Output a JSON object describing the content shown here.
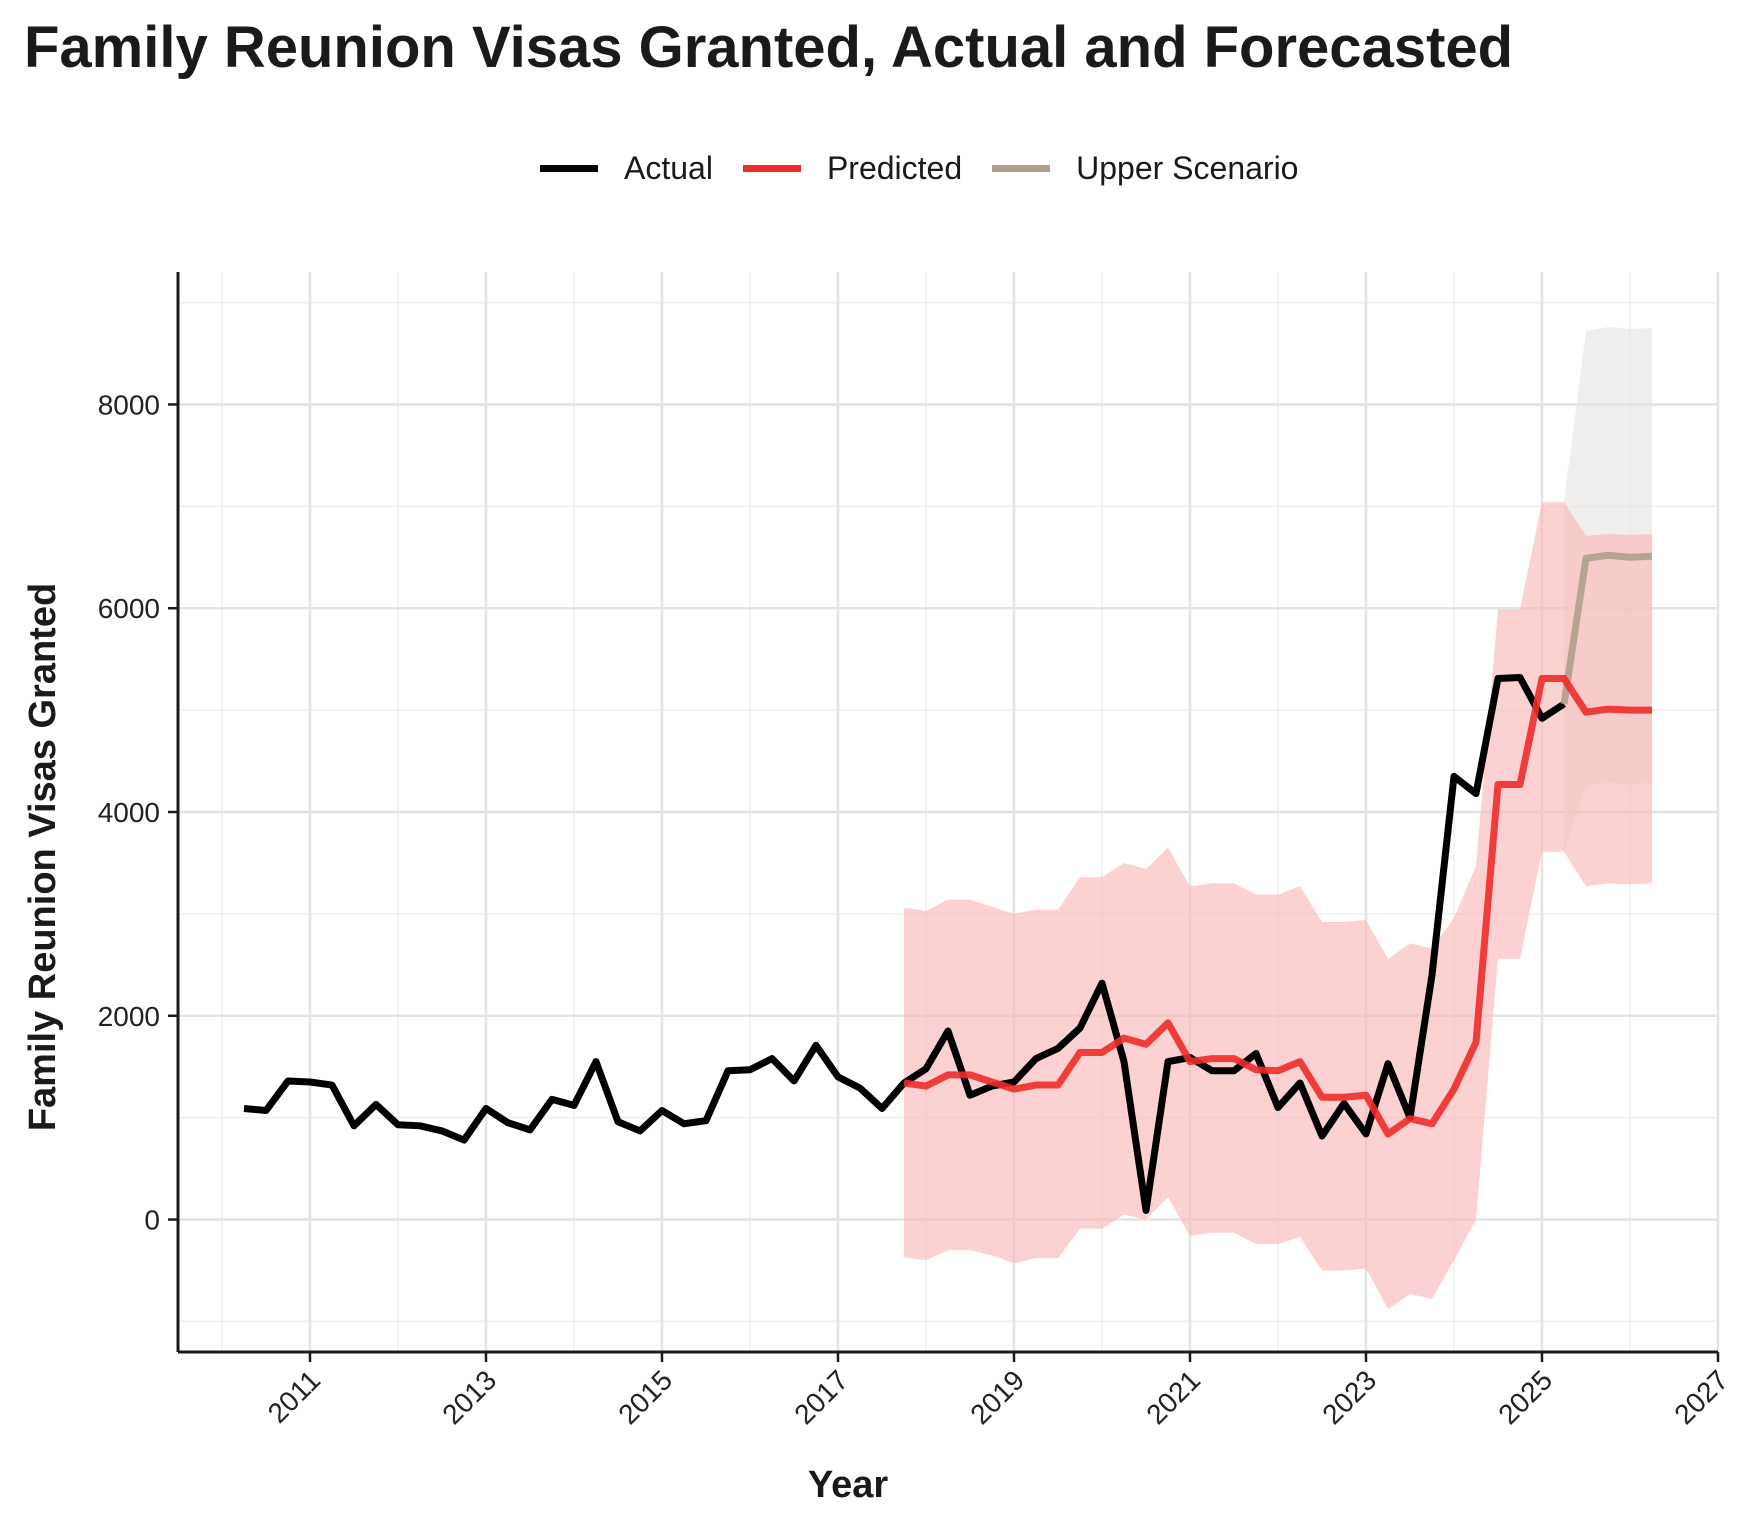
{
  "chart_data": {
    "type": "line",
    "title": "Family Reunion Visas Granted, Actual and Forecasted",
    "xlabel": "Year",
    "ylabel": "Family Reunion Visas Granted",
    "xlim": [
      2009.5,
      2027
    ],
    "ylim": [
      -1300,
      9300
    ],
    "x_ticks": [
      2011,
      2013,
      2015,
      2017,
      2019,
      2021,
      2023,
      2025,
      2027
    ],
    "y_ticks": [
      0,
      2000,
      4000,
      6000,
      8000
    ],
    "grid": true,
    "legend_position": "top",
    "colors": {
      "actual": "#000000",
      "predicted": "#ee2b29",
      "upper": "#aea08c",
      "band_predicted": "#f9b9b9",
      "band_upper": "#e6e3df"
    },
    "series": [
      {
        "name": "Actual",
        "x": [
          2010.25,
          2010.5,
          2010.75,
          2011,
          2011.25,
          2011.5,
          2011.75,
          2012,
          2012.25,
          2012.5,
          2012.75,
          2013,
          2013.25,
          2013.5,
          2013.75,
          2014,
          2014.25,
          2014.5,
          2014.75,
          2015,
          2015.25,
          2015.5,
          2015.75,
          2016,
          2016.25,
          2016.5,
          2016.75,
          2017,
          2017.25,
          2017.5,
          2017.75,
          2018,
          2018.25,
          2018.5,
          2018.75,
          2019,
          2019.25,
          2019.5,
          2019.75,
          2020,
          2020.25,
          2020.5,
          2020.75,
          2021,
          2021.25,
          2021.5,
          2021.75,
          2022,
          2022.25,
          2022.5,
          2022.75,
          2023,
          2023.25,
          2023.5,
          2023.75,
          2024,
          2024.25,
          2024.5,
          2024.75,
          2025,
          2025.25
        ],
        "values": [
          1090,
          1070,
          1360,
          1350,
          1320,
          920,
          1130,
          930,
          920,
          870,
          780,
          1090,
          950,
          880,
          1180,
          1120,
          1550,
          960,
          870,
          1070,
          940,
          970,
          1460,
          1470,
          1580,
          1360,
          1710,
          1400,
          1290,
          1090,
          1340,
          1480,
          1850,
          1220,
          1310,
          1350,
          1580,
          1680,
          1880,
          2320,
          1550,
          90,
          1550,
          1590,
          1460,
          1460,
          1630,
          1100,
          1340,
          820,
          1140,
          840,
          1530,
          1000,
          2400,
          4350,
          4180,
          5310,
          5320,
          4920,
          5060
        ]
      },
      {
        "name": "Predicted",
        "x": [
          2017.75,
          2018,
          2018.25,
          2018.5,
          2018.75,
          2019,
          2019.25,
          2019.5,
          2019.75,
          2020,
          2020.25,
          2020.5,
          2020.75,
          2021,
          2021.25,
          2021.5,
          2021.75,
          2022,
          2022.25,
          2022.5,
          2022.75,
          2023,
          2023.25,
          2023.5,
          2023.75,
          2024,
          2024.25,
          2024.5,
          2024.75,
          2025,
          2025.25,
          2025.5,
          2025.75,
          2026,
          2026.25
        ],
        "values": [
          1340,
          1310,
          1420,
          1420,
          1350,
          1280,
          1320,
          1320,
          1640,
          1640,
          1780,
          1720,
          1930,
          1550,
          1580,
          1580,
          1470,
          1460,
          1550,
          1200,
          1200,
          1220,
          840,
          990,
          940,
          1280,
          1740,
          4270,
          4270,
          5310,
          5310,
          4980,
          5010,
          5000,
          5000
        ]
      },
      {
        "name": "Upper Scenario",
        "x": [
          2025.25,
          2025.5,
          2025.75,
          2026,
          2026.25
        ],
        "values": [
          5060,
          6490,
          6520,
          6500,
          6510
        ]
      }
    ],
    "bands": [
      {
        "series": "Predicted",
        "x": [
          2017.75,
          2018,
          2018.25,
          2018.5,
          2018.75,
          2019,
          2019.25,
          2019.5,
          2019.75,
          2020,
          2020.25,
          2020.5,
          2020.75,
          2021,
          2021.25,
          2021.5,
          2021.75,
          2022,
          2022.25,
          2022.5,
          2022.75,
          2023,
          2023.25,
          2023.5,
          2023.75,
          2024,
          2024.25,
          2024.5,
          2024.75,
          2025,
          2025.25,
          2025.5,
          2025.75,
          2026,
          2026.25
        ],
        "lower": [
          -370,
          -400,
          -300,
          -300,
          -350,
          -430,
          -380,
          -380,
          -90,
          -90,
          50,
          0,
          220,
          -160,
          -130,
          -130,
          -240,
          -240,
          -170,
          -500,
          -500,
          -480,
          -880,
          -730,
          -780,
          -400,
          0,
          2560,
          2560,
          3610,
          3610,
          3270,
          3300,
          3290,
          3300
        ],
        "upper": [
          3060,
          3030,
          3140,
          3140,
          3070,
          3000,
          3040,
          3040,
          3360,
          3360,
          3500,
          3440,
          3650,
          3270,
          3300,
          3300,
          3190,
          3190,
          3270,
          2920,
          2920,
          2940,
          2560,
          2710,
          2660,
          2960,
          3470,
          5990,
          5990,
          7040,
          7040,
          6710,
          6730,
          6720,
          6730
        ]
      },
      {
        "series": "Upper Scenario",
        "x": [
          2025.25,
          2025.5,
          2025.75,
          2026,
          2026.25
        ],
        "lower": [
          3620,
          4250,
          4290,
          4270,
          4290
        ],
        "upper": [
          7050,
          8720,
          8760,
          8740,
          8750
        ]
      }
    ]
  }
}
